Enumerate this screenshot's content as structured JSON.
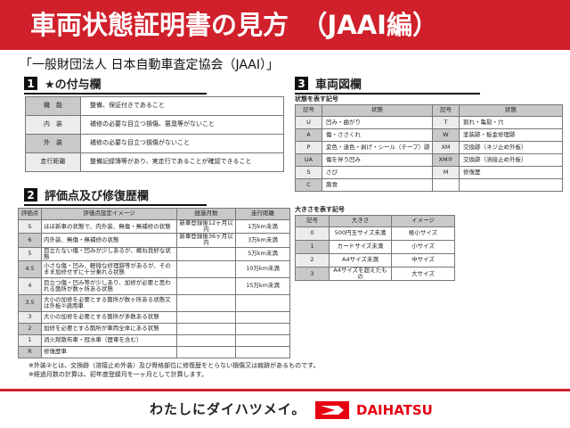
{
  "header": {
    "title": "車両状態証明書の見方　（JAAI編）"
  },
  "organization": "「一般財団法人 日本自動車査定協会（JAAI）」",
  "section1": {
    "number": "1",
    "title": "★の付与欄",
    "rows": [
      {
        "label": "機　能",
        "text": "整備、保証付きであること"
      },
      {
        "label": "内　装",
        "text": "補修の必要な目立つ損傷、悪臭等がないこと"
      },
      {
        "label": "外　装",
        "text": "補修の必要な目立つ損傷がないこと"
      },
      {
        "label": "走行距離",
        "text": "整備記録簿等があり、実走行であることが確認できること"
      }
    ]
  },
  "section2": {
    "number": "2",
    "title": "評価点及び修復歴欄",
    "headers": [
      "評価点",
      "評価点設定イメージ",
      "経過月数",
      "走行距離"
    ],
    "rows": [
      [
        "S",
        "ほぼ新車の状態で、内外装、無傷・無補修の状態",
        "新車登録後12ヶ月以内",
        "1万km未満"
      ],
      [
        "6",
        "内外装、無傷・無補修の状態",
        "新車登録後36ヶ月以内",
        "3万km未満"
      ],
      [
        "5",
        "目立たない傷・凹みが少しあるが、概ね良好な状態",
        "",
        "5万km未満"
      ],
      [
        "4.5",
        "小さな傷・凹み、軽微な修理跡等があるが、そのまま加修せずに十分乗れる状態",
        "",
        "10万km未満"
      ],
      [
        "4",
        "目立つ傷・凹み等が少しあり、加修が必要と思われる箇所が数ヶ所ある状態",
        "",
        "15万km未満"
      ],
      [
        "3.5",
        "大小の加修を必要とする箇所が数ヶ所ある状態又は外板②適用車",
        "",
        ""
      ],
      [
        "3",
        "大小の加修を必要とする箇所が多数ある状態",
        "",
        ""
      ],
      [
        "2",
        "加修を必要とする箇所が車両全体にある状態",
        "",
        ""
      ],
      [
        "1",
        "消火剤散布車・冠水車（歴車を含む）",
        "",
        ""
      ],
      [
        "R",
        "修復歴車",
        "",
        ""
      ]
    ]
  },
  "notes": [
    "※外装②とは、交換跡（溶接止め外装）及び骨格部位に修復歴をとらない損傷又は痕跡があるものです。",
    "※経過月数の計算は、初年度登録月を一ヶ月として計算します。"
  ],
  "section3": {
    "number": "3",
    "title": "車両図欄",
    "state_title": "状態を表す記号",
    "state_headers": [
      "記号",
      "状態",
      "記号",
      "状態"
    ],
    "state_rows": [
      [
        "U",
        "凹み・曲がり",
        "T",
        "割れ・亀裂・穴"
      ],
      [
        "A",
        "傷・ささくれ",
        "W",
        "塗装跡・板金修理跡"
      ],
      [
        "P",
        "変色・退色・剥げ・シール（テープ）跡",
        "XM",
        "交換跡（ネジ止め外板）"
      ],
      [
        "UA",
        "傷を伴う凹み",
        "XM②",
        "交換跡（溶接止め外板）"
      ],
      [
        "S",
        "さび",
        "M",
        "修復歴"
      ],
      [
        "C",
        "腐食",
        "",
        ""
      ]
    ],
    "size_title": "大きさを表す記号",
    "size_headers": [
      "記号",
      "大きさ",
      "イメージ"
    ],
    "size_rows": [
      [
        "0",
        "500円玉サイズ未満",
        "極小サイズ"
      ],
      [
        "1",
        "カードサイズ未満",
        "小サイズ"
      ],
      [
        "2",
        "A4サイズ未満",
        "中サイズ"
      ],
      [
        "3",
        "A4サイズを超えたもの",
        "大サイズ"
      ]
    ]
  },
  "footer": {
    "slogan": "わたしにダイハツメイ。",
    "brand": "DAIHATSU",
    "brand_color": "#e60012",
    "accent": "#d0202b"
  }
}
